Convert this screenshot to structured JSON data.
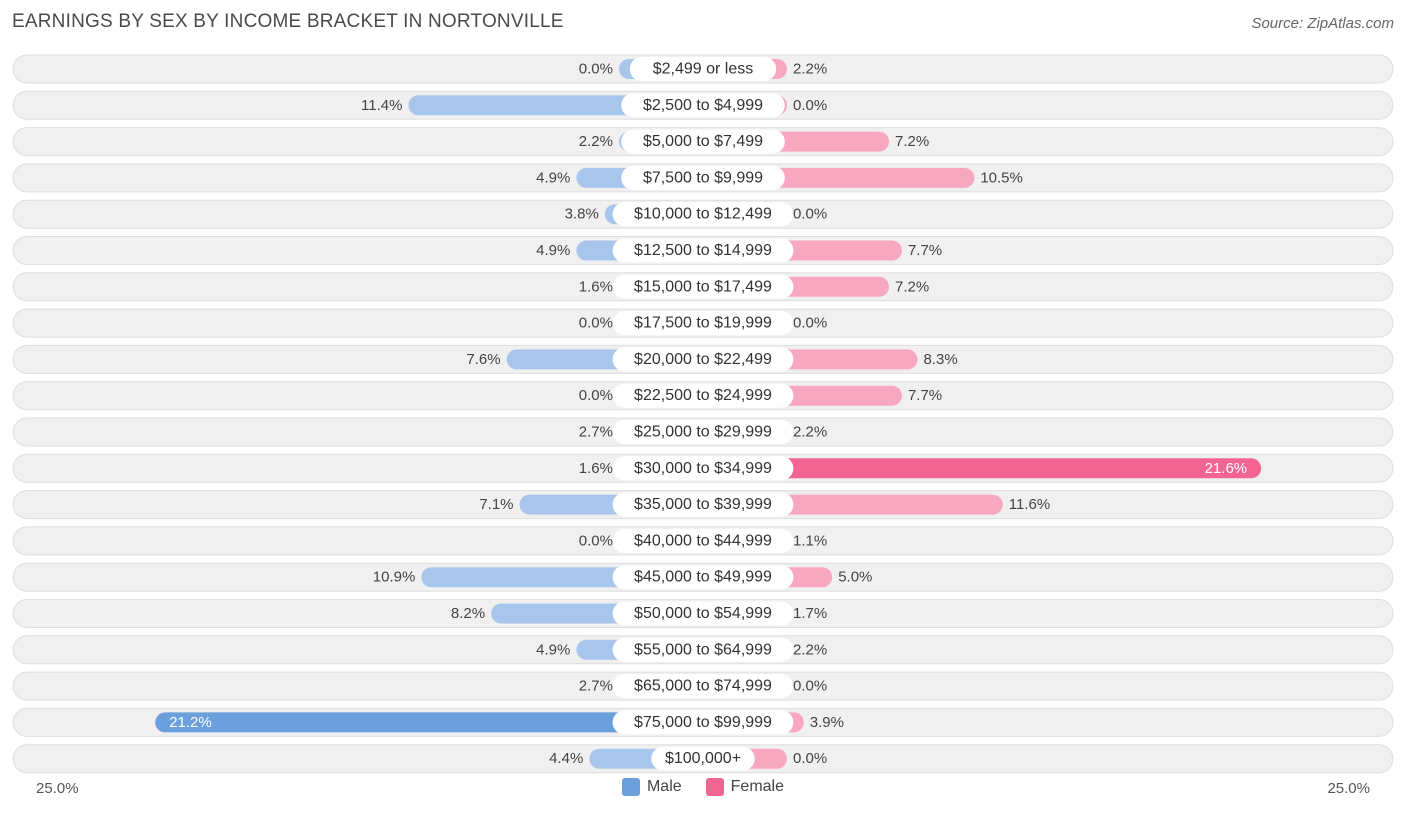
{
  "header": {
    "title": "EARNINGS BY SEX BY INCOME BRACKET IN NORTONVILLE",
    "source": "Source: ZipAtlas.com"
  },
  "axis": {
    "left_label": "25.0%",
    "right_label": "25.0%"
  },
  "legend": {
    "male_label": "Male",
    "female_label": "Female"
  },
  "colors": {
    "male": "#a8c6ec",
    "male_strong": "#6ba0dc",
    "female": "#f7a8c0",
    "female_strong": "#f26492",
    "row_bg": "#f0f0f0",
    "row_border": "#dedede"
  },
  "chart_data": {
    "type": "bar",
    "orientation": "horizontal-diverging",
    "title": "EARNINGS BY SEX BY INCOME BRACKET IN NORTONVILLE",
    "xlim": [
      -25.0,
      25.0
    ],
    "unit": "%",
    "categories": [
      "$2,499 or less",
      "$2,500 to $4,999",
      "$5,000 to $7,499",
      "$7,500 to $9,999",
      "$10,000 to $12,499",
      "$12,500 to $14,999",
      "$15,000 to $17,499",
      "$17,500 to $19,999",
      "$20,000 to $22,499",
      "$22,500 to $24,999",
      "$25,000 to $29,999",
      "$30,000 to $34,999",
      "$35,000 to $39,999",
      "$40,000 to $44,999",
      "$45,000 to $49,999",
      "$50,000 to $54,999",
      "$55,000 to $64,999",
      "$65,000 to $74,999",
      "$75,000 to $99,999",
      "$100,000+"
    ],
    "series": [
      {
        "name": "Male",
        "values": [
          0.0,
          11.4,
          2.2,
          4.9,
          3.8,
          4.9,
          1.6,
          0.0,
          7.6,
          0.0,
          2.7,
          1.6,
          7.1,
          0.0,
          10.9,
          8.2,
          4.9,
          2.7,
          21.2,
          4.4
        ],
        "labels": [
          "0.0%",
          "11.4%",
          "2.2%",
          "4.9%",
          "3.8%",
          "4.9%",
          "1.6%",
          "0.0%",
          "7.6%",
          "0.0%",
          "2.7%",
          "1.6%",
          "7.1%",
          "0.0%",
          "10.9%",
          "8.2%",
          "4.9%",
          "2.7%",
          "21.2%",
          "4.4%"
        ]
      },
      {
        "name": "Female",
        "values": [
          2.2,
          0.0,
          7.2,
          10.5,
          0.0,
          7.7,
          7.2,
          0.0,
          8.3,
          7.7,
          2.2,
          21.6,
          11.6,
          1.1,
          5.0,
          1.7,
          2.2,
          0.0,
          3.9,
          0.0
        ],
        "labels": [
          "2.2%",
          "0.0%",
          "7.2%",
          "10.5%",
          "0.0%",
          "7.7%",
          "7.2%",
          "0.0%",
          "8.3%",
          "7.7%",
          "2.2%",
          "21.6%",
          "11.6%",
          "1.1%",
          "5.0%",
          "1.7%",
          "2.2%",
          "0.0%",
          "3.9%",
          "0.0%"
        ]
      }
    ]
  }
}
